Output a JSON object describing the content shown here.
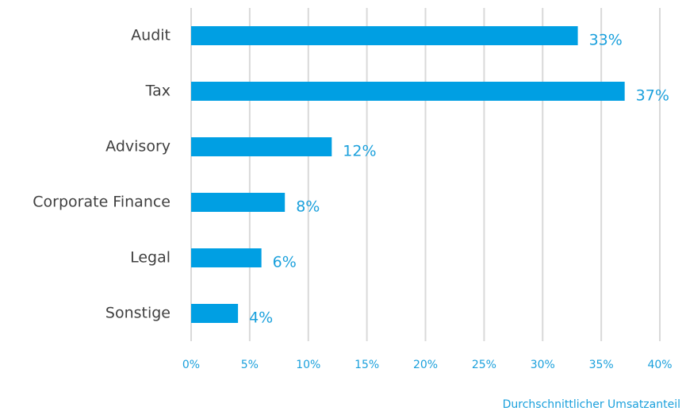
{
  "chart_data": {
    "type": "bar",
    "orientation": "horizontal",
    "categories": [
      "Audit",
      "Tax",
      "Advisory",
      "Corporate Finance",
      "Legal",
      "Sonstige"
    ],
    "values": [
      33,
      37,
      12,
      8,
      6,
      4
    ],
    "value_labels": [
      "33%",
      "37%",
      "12%",
      "8%",
      "6%",
      "4%"
    ],
    "color": "#009fe3",
    "xlim": [
      0,
      40
    ],
    "xticks": [
      {
        "value": 0,
        "label": "0%"
      },
      {
        "value": 5,
        "label": "5%"
      },
      {
        "value": 10,
        "label": "10%"
      },
      {
        "value": 15,
        "label": "15%"
      },
      {
        "value": 20,
        "label": "20%"
      },
      {
        "value": 25,
        "label": "25%"
      },
      {
        "value": 30,
        "label": "30%"
      },
      {
        "value": 35,
        "label": "35%"
      },
      {
        "value": 40,
        "label": "40%"
      }
    ],
    "x_axis_label": "Durchschnittlicher Umsatzanteil",
    "grid": true
  }
}
